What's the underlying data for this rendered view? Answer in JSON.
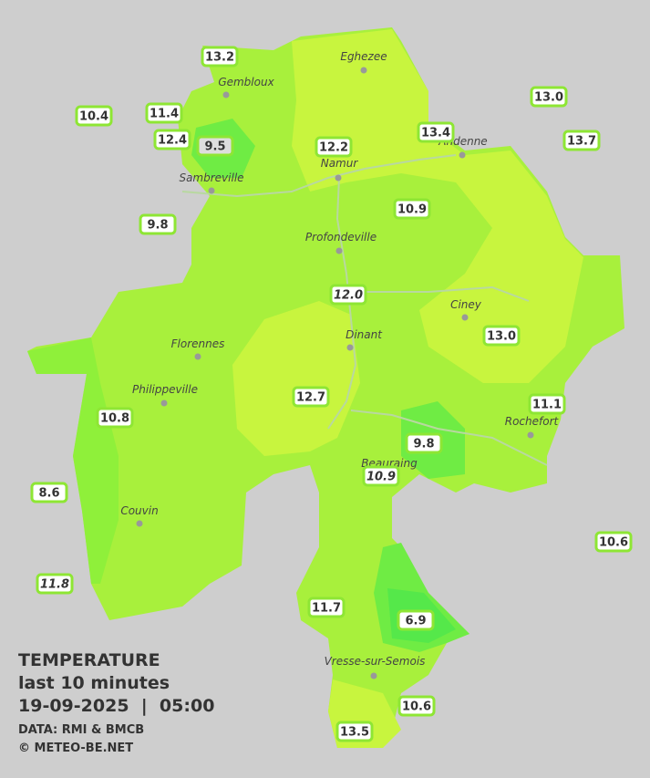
{
  "map": {
    "legend": {
      "title": "TEMPERATURE",
      "subtitle": "last 10 minutes",
      "datetime": "19-09-2025  |  05:00",
      "source": "DATA: RMI & BMCB",
      "credit": "© METEO-BE.NET"
    },
    "cities": [
      "Eghezee",
      "Gembloux",
      "Andenne",
      "Namur",
      "Sambreville",
      "Profondeville",
      "Ciney",
      "Dinant",
      "Florennes",
      "Philippeville",
      "Rochefort",
      "Beauraing",
      "Couvin",
      "Vresse-sur-Semois"
    ],
    "stations": [
      "13.2",
      "10.4",
      "11.4",
      "12.4",
      "9.5",
      "12.2",
      "13.4",
      "13.0",
      "13.7",
      "9.8",
      "10.9",
      "12.0",
      "13.0",
      "12.7",
      "11.1",
      "10.8",
      "9.8",
      "10.9",
      "8.6",
      "10.6",
      "11.8",
      "11.7",
      "6.9",
      "10.6",
      "13.5"
    ]
  }
}
